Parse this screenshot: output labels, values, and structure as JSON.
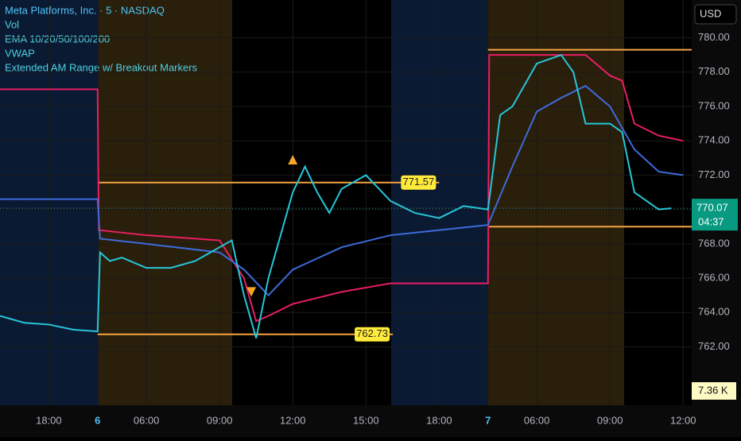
{
  "chart_data": {
    "type": "line",
    "currency": "USD",
    "legend": [
      "Meta Platforms, Inc. · 5 · NASDAQ",
      "Vol",
      "EMA 10/20/50/100/200",
      "VWAP",
      "Extended AM Range w/ Breakout Markers"
    ],
    "xlim": [
      -2,
      26.35
    ],
    "ylim": [
      758.6,
      782.2
    ],
    "xticks": [
      {
        "value": 0,
        "label": "18:00"
      },
      {
        "value": 2,
        "label": "6"
      },
      {
        "value": 4,
        "label": "06:00"
      },
      {
        "value": 7,
        "label": "09:00"
      },
      {
        "value": 10,
        "label": "12:00"
      },
      {
        "value": 13,
        "label": "15:00"
      },
      {
        "value": 16,
        "label": "18:00"
      },
      {
        "value": 18,
        "label": "7"
      },
      {
        "value": 20,
        "label": "06:00"
      },
      {
        "value": 23,
        "label": "09:00"
      },
      {
        "value": 26,
        "label": "12:00"
      }
    ],
    "yticks": [
      {
        "value": 762,
        "label": "762.00"
      },
      {
        "value": 764,
        "label": "764.00"
      },
      {
        "value": 766,
        "label": "766.00"
      },
      {
        "value": 768,
        "label": "768.00"
      },
      {
        "value": 770,
        "label": "770.00"
      },
      {
        "value": 772,
        "label": "772.00"
      },
      {
        "value": 774,
        "label": "774.00"
      },
      {
        "value": 776,
        "label": "776.00"
      },
      {
        "value": 778,
        "label": "778.00"
      },
      {
        "value": 780,
        "label": "780.00"
      }
    ],
    "series": [
      {
        "name": "VWAP",
        "color": "#e91e63",
        "x": [
          -2,
          2,
          2.05,
          4,
          7,
          8,
          8.5,
          9,
          10,
          12,
          14,
          16,
          18,
          18.05,
          22,
          23,
          23.5,
          24,
          25,
          26
        ],
        "values": [
          777.0,
          777.0,
          768.8,
          768.5,
          768.2,
          766.0,
          763.5,
          763.8,
          764.5,
          765.2,
          765.7,
          765.7,
          765.7,
          779.0,
          779.0,
          777.8,
          777.5,
          775.0,
          774.3,
          774.0
        ]
      },
      {
        "name": "EMA 10/20/50/100/200",
        "color": "#3d6bdb",
        "x": [
          -2,
          2,
          2.1,
          4,
          7,
          8,
          9,
          10,
          12,
          14,
          16,
          18,
          19,
          20,
          21,
          22,
          23,
          24,
          25,
          26
        ],
        "values": [
          770.6,
          770.6,
          768.3,
          768.0,
          767.5,
          766.5,
          765.0,
          766.5,
          767.8,
          768.5,
          768.8,
          769.1,
          772.5,
          775.7,
          776.5,
          777.2,
          776.0,
          773.5,
          772.2,
          772.0
        ]
      },
      {
        "name": "Meta Platforms, Inc. · 5 · NASDAQ",
        "color": "#26c6da",
        "x": [
          -2,
          -1,
          0,
          1,
          2,
          2.1,
          2.5,
          3,
          4,
          5,
          6,
          7,
          7.5,
          8,
          8.5,
          9,
          9.5,
          10,
          10.5,
          11,
          11.5,
          12,
          13,
          14,
          15,
          16,
          17,
          18,
          18.5,
          19,
          20,
          21,
          21.5,
          22,
          23,
          23.5,
          24,
          25,
          25.5
        ],
        "values": [
          763.8,
          763.4,
          763.3,
          763.0,
          762.9,
          767.5,
          767.0,
          767.2,
          766.6,
          766.6,
          767.0,
          767.8,
          768.2,
          765.0,
          762.5,
          766.0,
          768.5,
          771.0,
          772.5,
          771.0,
          769.8,
          771.2,
          772.0,
          770.5,
          769.8,
          769.5,
          770.2,
          770.0,
          775.5,
          776.0,
          778.5,
          779.0,
          778.0,
          775.0,
          775.0,
          774.5,
          771.0,
          770.0,
          770.07
        ]
      }
    ],
    "levels": [
      {
        "value": 771.57,
        "start": 2,
        "end": 16,
        "show_label": true
      },
      {
        "value": 762.73,
        "start": 2,
        "end": 14.1,
        "show_label": true
      },
      {
        "value": 779.3,
        "start": 18,
        "end": 26.35,
        "show_label": false
      },
      {
        "value": 769.0,
        "start": 18,
        "end": 26.35,
        "show_label": false
      }
    ],
    "level_color": "#f5a443",
    "markers": [
      {
        "x": 10,
        "y": 772.9,
        "shape": "up"
      },
      {
        "x": 8.3,
        "y": 765.2,
        "shape": "down"
      }
    ],
    "last_price": 770.07,
    "countdown": "04:37",
    "last_volume": "7.36 K"
  }
}
